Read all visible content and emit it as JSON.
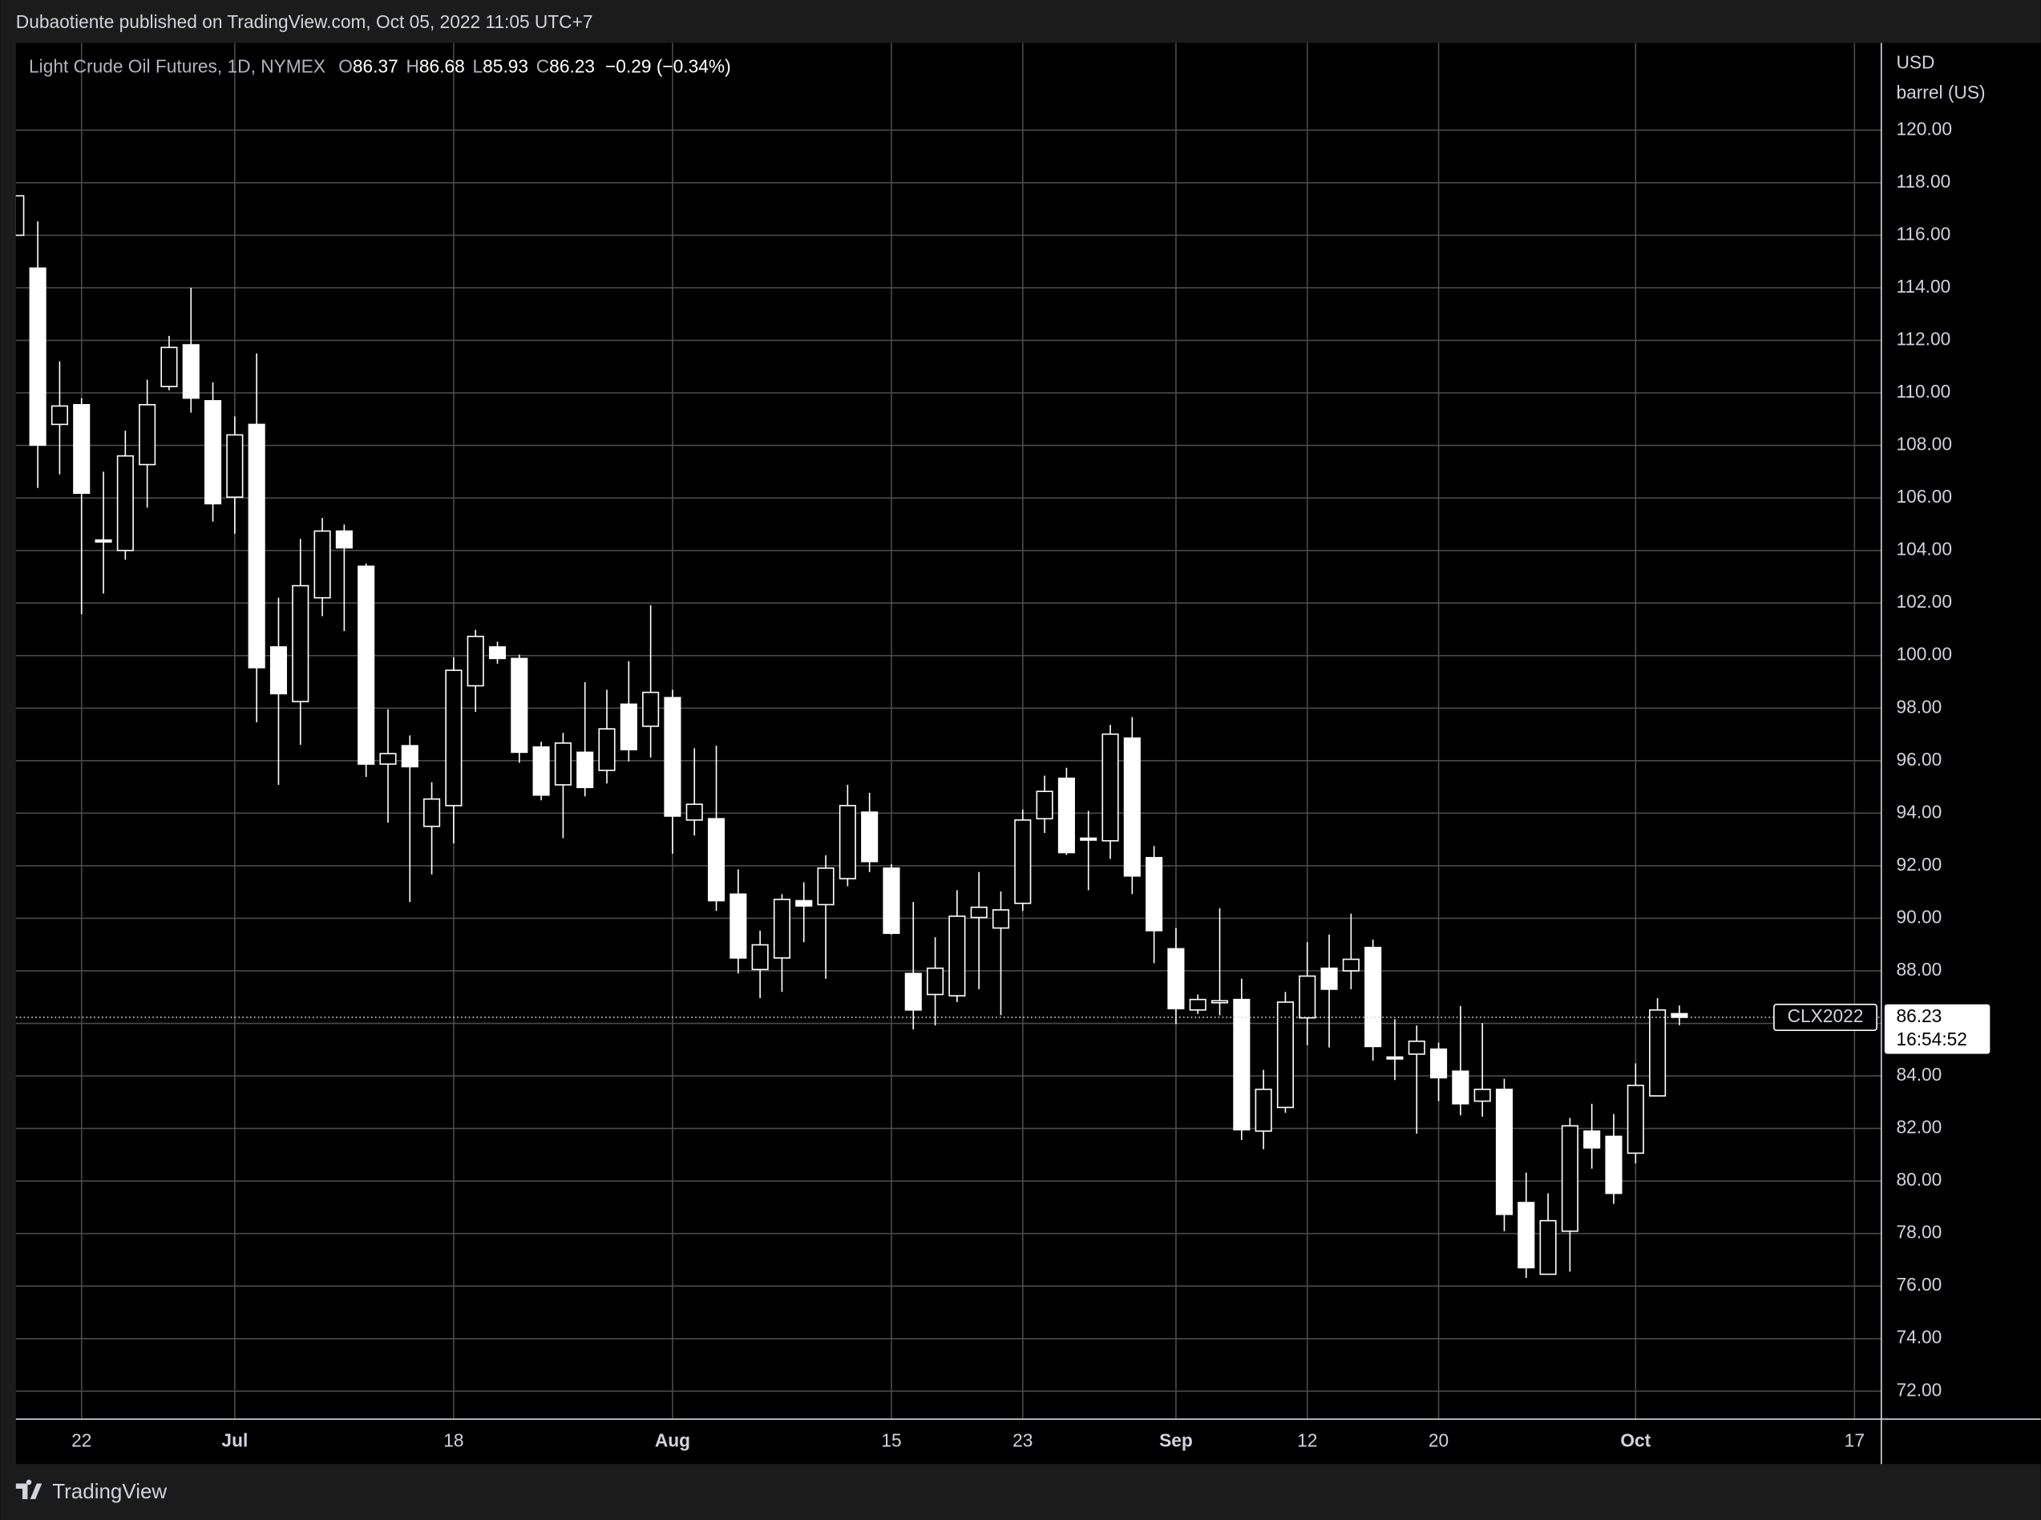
{
  "header": "Dubaotiente published on TradingView.com, Oct 05, 2022 11:05 UTC+7",
  "footer": "TradingView",
  "chart_data": {
    "type": "candlestick",
    "title": "Light Crude Oil Futures, 1D, NYMEX",
    "ohlc_labels": [
      "O",
      "H",
      "L",
      "C"
    ],
    "change": "−0.29 (−0.34%)",
    "y_label": [
      "USD",
      "barrel (US)"
    ],
    "symbol": "CLX2022",
    "countdown": "16:54:52",
    "color": "#ffffff",
    "grid": true,
    "categories": [
      null,
      null,
      null,
      "22",
      null,
      null,
      null,
      null,
      null,
      null,
      "Jul",
      null,
      null,
      null,
      null,
      null,
      null,
      null,
      null,
      null,
      "18",
      null,
      null,
      null,
      null,
      null,
      null,
      null,
      null,
      null,
      "Aug",
      null,
      null,
      null,
      null,
      null,
      null,
      null,
      null,
      null,
      "15",
      null,
      null,
      null,
      null,
      null,
      "23",
      null,
      null,
      null,
      null,
      null,
      null,
      "Sep",
      null,
      null,
      null,
      null,
      null,
      "12",
      null,
      null,
      null,
      null,
      null,
      "20",
      null,
      null,
      null,
      null,
      null,
      null,
      null,
      null,
      "Oct",
      null,
      null,
      null,
      null,
      null,
      null,
      null,
      null,
      null,
      "17"
    ],
    "open": [
      116.0,
      114.75,
      108.8,
      109.55,
      104.4,
      104.0,
      107.27,
      110.24,
      111.83,
      109.7,
      106.03,
      108.8,
      100.33,
      98.25,
      102.2,
      104.74,
      103.4,
      95.87,
      96.57,
      93.5,
      94.29,
      98.85,
      100.33,
      99.89,
      96.52,
      95.08,
      96.32,
      95.63,
      98.15,
      97.31,
      98.4,
      93.74,
      93.79,
      90.92,
      88.05,
      88.49,
      90.67,
      90.52,
      91.51,
      94.04,
      91.91,
      87.9,
      87.1,
      87.05,
      90.03,
      89.63,
      90.57,
      93.79,
      95.33,
      93.05,
      92.95,
      96.86,
      92.31,
      88.84,
      86.51,
      86.86,
      86.91,
      81.9,
      82.8,
      86.21,
      88.1,
      88.0,
      88.89,
      84.72,
      84.83,
      85.02,
      84.18,
      83.04,
      83.49,
      79.18,
      76.45,
      78.09,
      81.9,
      81.7,
      81.06,
      83.24,
      86.37,
      null,
      null,
      null,
      null,
      null,
      null,
      null,
      null
    ],
    "high": [
      117.5,
      116.53,
      111.2,
      109.8,
      107.0,
      108.56,
      110.5,
      112.17,
      114.0,
      110.4,
      109.1,
      111.5,
      102.2,
      104.44,
      105.24,
      104.99,
      103.5,
      97.95,
      96.96,
      95.18,
      99.94,
      100.98,
      100.53,
      100.04,
      96.72,
      97.06,
      98.99,
      98.7,
      99.79,
      101.92,
      98.7,
      96.47,
      96.57,
      91.86,
      89.53,
      90.92,
      91.37,
      92.4,
      95.08,
      94.78,
      92.06,
      90.62,
      89.28,
      91.07,
      91.76,
      91.02,
      94.14,
      95.43,
      95.73,
      94.09,
      97.36,
      97.66,
      92.75,
      89.63,
      87.1,
      90.38,
      87.7,
      84.23,
      87.2,
      89.09,
      89.38,
      90.18,
      89.19,
      86.16,
      85.92,
      85.27,
      86.66,
      86.01,
      83.89,
      80.32,
      79.53,
      82.4,
      82.94,
      82.55,
      84.48,
      86.96,
      86.68,
      null,
      null,
      null,
      null,
      null,
      null,
      null,
      null
    ],
    "low": [
      116.0,
      106.38,
      106.9,
      101.57,
      102.36,
      103.65,
      105.63,
      110.1,
      109.25,
      105.1,
      104.64,
      97.46,
      95.08,
      96.6,
      101.5,
      100.93,
      95.38,
      93.64,
      90.62,
      91.67,
      92.85,
      97.86,
      99.69,
      95.92,
      94.49,
      93.05,
      94.64,
      95.13,
      95.97,
      96.12,
      92.46,
      93.15,
      90.28,
      87.9,
      86.96,
      87.2,
      89.09,
      87.7,
      91.22,
      91.76,
      89.38,
      85.77,
      85.92,
      86.81,
      87.3,
      86.31,
      90.28,
      93.25,
      92.41,
      91.07,
      92.26,
      90.92,
      88.29,
      85.97,
      86.36,
      86.31,
      81.56,
      81.21,
      82.6,
      85.17,
      85.08,
      87.3,
      84.58,
      83.84,
      81.8,
      83.04,
      82.5,
      82.45,
      78.09,
      76.31,
      76.45,
      76.55,
      80.47,
      79.13,
      80.67,
      83.24,
      85.93,
      null,
      null,
      null,
      null,
      null,
      null,
      null,
      null
    ],
    "close": [
      117.5,
      108.01,
      109.5,
      106.18,
      104.35,
      107.6,
      109.55,
      111.73,
      109.8,
      105.78,
      108.4,
      99.54,
      98.55,
      102.66,
      104.74,
      104.1,
      95.87,
      96.27,
      95.77,
      94.54,
      99.44,
      100.73,
      99.89,
      96.32,
      94.69,
      96.67,
      94.98,
      97.21,
      96.42,
      98.6,
      93.89,
      94.34,
      90.67,
      88.49,
      88.99,
      90.72,
      90.47,
      91.91,
      94.29,
      92.16,
      89.43,
      86.51,
      88.1,
      90.08,
      90.42,
      90.32,
      93.74,
      94.83,
      92.5,
      93.0,
      97.01,
      91.61,
      89.53,
      86.56,
      86.91,
      86.86,
      81.95,
      83.49,
      86.81,
      87.8,
      87.3,
      88.44,
      85.12,
      84.67,
      85.32,
      83.93,
      82.94,
      83.49,
      78.73,
      76.7,
      78.49,
      82.1,
      81.26,
      79.53,
      83.64,
      86.51,
      86.23,
      null,
      null,
      null,
      null,
      null,
      null,
      null,
      null
    ],
    "ylim": [
      70.96,
      123.32
    ],
    "yticks": [
      {
        "value": 72,
        "label": "72.00"
      },
      {
        "value": 74,
        "label": "74.00"
      },
      {
        "value": 76,
        "label": "76.00"
      },
      {
        "value": 78,
        "label": "78.00"
      },
      {
        "value": 80,
        "label": "80.00"
      },
      {
        "value": 82,
        "label": "82.00"
      },
      {
        "value": 84,
        "label": "84.00"
      },
      {
        "value": 86,
        "label": "86.00"
      },
      {
        "value": 88,
        "label": "88.00"
      },
      {
        "value": 90,
        "label": "90.00"
      },
      {
        "value": 92,
        "label": "92.00"
      },
      {
        "value": 94,
        "label": "94.00"
      },
      {
        "value": 96,
        "label": "96.00"
      },
      {
        "value": 98,
        "label": "98.00"
      },
      {
        "value": 100,
        "label": "100.00"
      },
      {
        "value": 102,
        "label": "102.00"
      },
      {
        "value": 104,
        "label": "104.00"
      },
      {
        "value": 106,
        "label": "106.00"
      },
      {
        "value": 108,
        "label": "108.00"
      },
      {
        "value": 110,
        "label": "110.00"
      },
      {
        "value": 112,
        "label": "112.00"
      },
      {
        "value": 114,
        "label": "114.00"
      },
      {
        "value": 116,
        "label": "116.00"
      },
      {
        "value": 118,
        "label": "118.00"
      },
      {
        "value": 120,
        "label": "120.00"
      }
    ]
  }
}
